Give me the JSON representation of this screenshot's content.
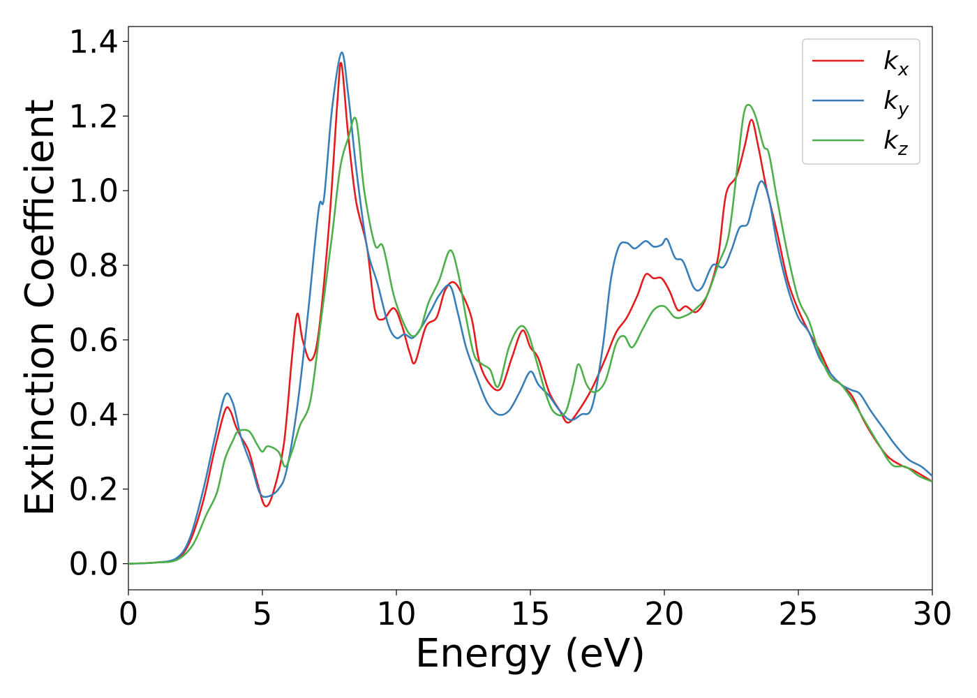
{
  "chart_data": {
    "type": "line",
    "xlabel": "Energy (eV)",
    "ylabel": "Extinction Coefficient",
    "xlim": [
      0,
      30
    ],
    "ylim": [
      -0.07,
      1.44
    ],
    "xticks": [
      0,
      5,
      10,
      15,
      20,
      25,
      30
    ],
    "xtick_labels": [
      "0",
      "5",
      "10",
      "15",
      "20",
      "25",
      "30"
    ],
    "yticks": [
      0.0,
      0.2,
      0.4,
      0.6,
      0.8,
      1.0,
      1.2,
      1.4
    ],
    "ytick_labels": [
      "0.0",
      "0.2",
      "0.4",
      "0.6",
      "0.8",
      "1.0",
      "1.2",
      "1.4"
    ],
    "grid": false,
    "legend_position": "top-right",
    "series": [
      {
        "name": "kx",
        "label_main": "k",
        "label_sub": "x",
        "color": "#e41a1c",
        "points": [
          [
            0,
            0
          ],
          [
            1,
            0.003
          ],
          [
            1.8,
            0.012
          ],
          [
            2.3,
            0.06
          ],
          [
            2.8,
            0.17
          ],
          [
            3.2,
            0.3
          ],
          [
            3.6,
            0.41
          ],
          [
            3.8,
            0.41
          ],
          [
            4,
            0.37
          ],
          [
            4.2,
            0.34
          ],
          [
            4.5,
            0.3
          ],
          [
            4.8,
            0.22
          ],
          [
            5.1,
            0.155
          ],
          [
            5.4,
            0.19
          ],
          [
            5.8,
            0.32
          ],
          [
            6.1,
            0.55
          ],
          [
            6.3,
            0.67
          ],
          [
            6.5,
            0.6
          ],
          [
            6.8,
            0.545
          ],
          [
            7.1,
            0.62
          ],
          [
            7.5,
            0.92
          ],
          [
            7.8,
            1.24
          ],
          [
            7.95,
            1.34
          ],
          [
            8.2,
            1.15
          ],
          [
            8.5,
            0.97
          ],
          [
            8.9,
            0.85
          ],
          [
            9.2,
            0.68
          ],
          [
            9.5,
            0.655
          ],
          [
            9.9,
            0.685
          ],
          [
            10.2,
            0.64
          ],
          [
            10.5,
            0.565
          ],
          [
            10.7,
            0.54
          ],
          [
            11.1,
            0.635
          ],
          [
            11.5,
            0.66
          ],
          [
            11.8,
            0.73
          ],
          [
            12.1,
            0.755
          ],
          [
            12.4,
            0.73
          ],
          [
            12.8,
            0.66
          ],
          [
            13.1,
            0.54
          ],
          [
            13.5,
            0.48
          ],
          [
            13.9,
            0.47
          ],
          [
            14.3,
            0.55
          ],
          [
            14.7,
            0.625
          ],
          [
            15,
            0.58
          ],
          [
            15.3,
            0.55
          ],
          [
            15.7,
            0.46
          ],
          [
            16.1,
            0.41
          ],
          [
            16.4,
            0.378
          ],
          [
            16.8,
            0.41
          ],
          [
            17.3,
            0.47
          ],
          [
            17.8,
            0.55
          ],
          [
            18.2,
            0.62
          ],
          [
            18.6,
            0.66
          ],
          [
            19,
            0.72
          ],
          [
            19.3,
            0.775
          ],
          [
            19.6,
            0.765
          ],
          [
            19.9,
            0.765
          ],
          [
            20.2,
            0.73
          ],
          [
            20.5,
            0.68
          ],
          [
            20.8,
            0.69
          ],
          [
            21.2,
            0.675
          ],
          [
            21.6,
            0.72
          ],
          [
            22,
            0.82
          ],
          [
            22.3,
            0.99
          ],
          [
            22.7,
            1.04
          ],
          [
            23,
            1.12
          ],
          [
            23.25,
            1.19
          ],
          [
            23.5,
            1.12
          ],
          [
            23.8,
            1.01
          ],
          [
            24.2,
            0.89
          ],
          [
            24.6,
            0.76
          ],
          [
            25,
            0.68
          ],
          [
            25.4,
            0.62
          ],
          [
            25.8,
            0.57
          ],
          [
            26.2,
            0.51
          ],
          [
            26.6,
            0.48
          ],
          [
            27,
            0.45
          ],
          [
            27.4,
            0.39
          ],
          [
            27.8,
            0.34
          ],
          [
            28.3,
            0.29
          ],
          [
            28.8,
            0.265
          ],
          [
            29.3,
            0.25
          ],
          [
            30,
            0.22
          ]
        ]
      },
      {
        "name": "ky",
        "label_main": "k",
        "label_sub": "y",
        "color": "#377eb8",
        "points": [
          [
            0,
            0
          ],
          [
            1,
            0.003
          ],
          [
            1.8,
            0.015
          ],
          [
            2.3,
            0.07
          ],
          [
            2.8,
            0.2
          ],
          [
            3.2,
            0.33
          ],
          [
            3.6,
            0.45
          ],
          [
            3.9,
            0.43
          ],
          [
            4.2,
            0.34
          ],
          [
            4.6,
            0.26
          ],
          [
            4.9,
            0.19
          ],
          [
            5.2,
            0.18
          ],
          [
            5.6,
            0.2
          ],
          [
            5.9,
            0.25
          ],
          [
            6.3,
            0.42
          ],
          [
            6.7,
            0.67
          ],
          [
            7.1,
            0.95
          ],
          [
            7.3,
            0.98
          ],
          [
            7.6,
            1.22
          ],
          [
            7.95,
            1.37
          ],
          [
            8.2,
            1.26
          ],
          [
            8.5,
            1.06
          ],
          [
            8.9,
            0.85
          ],
          [
            9.3,
            0.75
          ],
          [
            9.7,
            0.64
          ],
          [
            10,
            0.605
          ],
          [
            10.3,
            0.615
          ],
          [
            10.6,
            0.605
          ],
          [
            10.9,
            0.63
          ],
          [
            11.3,
            0.68
          ],
          [
            11.6,
            0.72
          ],
          [
            12,
            0.745
          ],
          [
            12.3,
            0.67
          ],
          [
            12.6,
            0.58
          ],
          [
            13,
            0.5
          ],
          [
            13.4,
            0.43
          ],
          [
            13.8,
            0.4
          ],
          [
            14.2,
            0.41
          ],
          [
            14.6,
            0.46
          ],
          [
            15,
            0.515
          ],
          [
            15.3,
            0.48
          ],
          [
            15.7,
            0.45
          ],
          [
            16.1,
            0.41
          ],
          [
            16.5,
            0.385
          ],
          [
            16.9,
            0.4
          ],
          [
            17.3,
            0.42
          ],
          [
            17.7,
            0.58
          ],
          [
            18,
            0.76
          ],
          [
            18.3,
            0.85
          ],
          [
            18.6,
            0.86
          ],
          [
            18.9,
            0.845
          ],
          [
            19.3,
            0.865
          ],
          [
            19.6,
            0.85
          ],
          [
            19.9,
            0.855
          ],
          [
            20.1,
            0.87
          ],
          [
            20.4,
            0.82
          ],
          [
            20.7,
            0.81
          ],
          [
            21.1,
            0.74
          ],
          [
            21.4,
            0.74
          ],
          [
            21.8,
            0.8
          ],
          [
            22.2,
            0.795
          ],
          [
            22.5,
            0.84
          ],
          [
            22.8,
            0.9
          ],
          [
            23.1,
            0.91
          ],
          [
            23.3,
            0.96
          ],
          [
            23.6,
            1.025
          ],
          [
            23.9,
            0.98
          ],
          [
            24.2,
            0.86
          ],
          [
            24.6,
            0.74
          ],
          [
            25,
            0.66
          ],
          [
            25.4,
            0.62
          ],
          [
            25.8,
            0.55
          ],
          [
            26.2,
            0.51
          ],
          [
            26.6,
            0.48
          ],
          [
            27,
            0.465
          ],
          [
            27.3,
            0.455
          ],
          [
            27.7,
            0.41
          ],
          [
            28.2,
            0.36
          ],
          [
            28.6,
            0.32
          ],
          [
            29.1,
            0.28
          ],
          [
            29.6,
            0.26
          ],
          [
            30,
            0.235
          ]
        ]
      },
      {
        "name": "kz",
        "label_main": "k",
        "label_sub": "z",
        "color": "#4daf4a",
        "points": [
          [
            0,
            0
          ],
          [
            1,
            0.003
          ],
          [
            1.8,
            0.01
          ],
          [
            2.4,
            0.05
          ],
          [
            2.9,
            0.13
          ],
          [
            3.3,
            0.19
          ],
          [
            3.6,
            0.28
          ],
          [
            3.9,
            0.33
          ],
          [
            4.1,
            0.355
          ],
          [
            4.5,
            0.355
          ],
          [
            4.8,
            0.32
          ],
          [
            5,
            0.3
          ],
          [
            5.2,
            0.315
          ],
          [
            5.6,
            0.3
          ],
          [
            5.85,
            0.26
          ],
          [
            6.1,
            0.3
          ],
          [
            6.4,
            0.37
          ],
          [
            6.8,
            0.44
          ],
          [
            7.2,
            0.66
          ],
          [
            7.6,
            0.88
          ],
          [
            7.9,
            1.06
          ],
          [
            8.2,
            1.14
          ],
          [
            8.5,
            1.19
          ],
          [
            8.8,
            1.0
          ],
          [
            9.2,
            0.855
          ],
          [
            9.5,
            0.85
          ],
          [
            9.9,
            0.72
          ],
          [
            10.3,
            0.64
          ],
          [
            10.6,
            0.61
          ],
          [
            10.9,
            0.63
          ],
          [
            11.2,
            0.7
          ],
          [
            11.6,
            0.76
          ],
          [
            12,
            0.84
          ],
          [
            12.3,
            0.78
          ],
          [
            12.6,
            0.66
          ],
          [
            12.9,
            0.56
          ],
          [
            13.2,
            0.535
          ],
          [
            13.5,
            0.52
          ],
          [
            13.8,
            0.475
          ],
          [
            14.2,
            0.58
          ],
          [
            14.6,
            0.635
          ],
          [
            14.9,
            0.62
          ],
          [
            15.2,
            0.55
          ],
          [
            15.6,
            0.45
          ],
          [
            15.9,
            0.405
          ],
          [
            16.3,
            0.405
          ],
          [
            16.6,
            0.48
          ],
          [
            16.8,
            0.535
          ],
          [
            17.1,
            0.48
          ],
          [
            17.4,
            0.46
          ],
          [
            17.8,
            0.49
          ],
          [
            18.2,
            0.59
          ],
          [
            18.5,
            0.61
          ],
          [
            18.8,
            0.58
          ],
          [
            19.2,
            0.63
          ],
          [
            19.6,
            0.68
          ],
          [
            20,
            0.69
          ],
          [
            20.4,
            0.66
          ],
          [
            20.8,
            0.665
          ],
          [
            21.2,
            0.685
          ],
          [
            21.6,
            0.72
          ],
          [
            22,
            0.8
          ],
          [
            22.4,
            0.88
          ],
          [
            22.7,
            1.05
          ],
          [
            22.95,
            1.2
          ],
          [
            23.15,
            1.23
          ],
          [
            23.4,
            1.2
          ],
          [
            23.7,
            1.12
          ],
          [
            23.9,
            1.1
          ],
          [
            24.2,
            0.98
          ],
          [
            24.6,
            0.83
          ],
          [
            25,
            0.71
          ],
          [
            25.4,
            0.65
          ],
          [
            25.8,
            0.56
          ],
          [
            26.2,
            0.5
          ],
          [
            26.6,
            0.48
          ],
          [
            27,
            0.44
          ],
          [
            27.5,
            0.38
          ],
          [
            28,
            0.32
          ],
          [
            28.5,
            0.265
          ],
          [
            29,
            0.26
          ],
          [
            29.5,
            0.235
          ],
          [
            30,
            0.22
          ]
        ]
      }
    ]
  }
}
